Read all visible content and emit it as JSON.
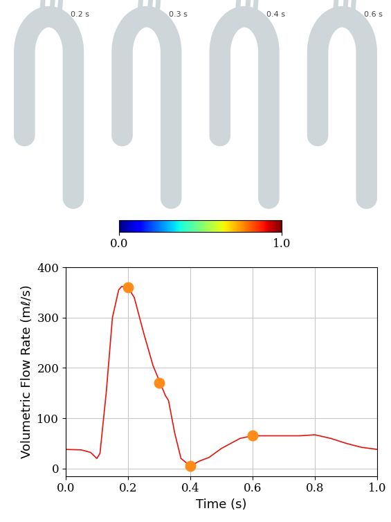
{
  "chart_data": [
    {
      "type": "colorbar",
      "annotations": [
        "0.2 s",
        "0.3 s",
        "0.4 s",
        "0.6 s"
      ],
      "colorbar_range": [
        0.0,
        1.0
      ],
      "colorbar_ticks": [
        {
          "value": 0.0,
          "label": "0.0"
        },
        {
          "value": 1.0,
          "label": "1.0"
        }
      ]
    },
    {
      "type": "line",
      "x_label": "Time (s)",
      "y_label": "Volumetric Flow Rate (mℓ/s)",
      "xlim": [
        0.0,
        1.0
      ],
      "ylim": [
        -15,
        400
      ],
      "xticks": [
        0.0,
        0.2,
        0.4,
        0.6,
        0.8,
        1.0
      ],
      "yticks": [
        0,
        100,
        200,
        300,
        400
      ],
      "grid": true,
      "series": [
        {
          "type": "line",
          "color": "#e8120c",
          "line_style": "solid",
          "x": [
            0.0,
            0.05,
            0.08,
            0.1,
            0.11,
            0.13,
            0.15,
            0.17,
            0.18,
            0.2,
            0.22,
            0.25,
            0.28,
            0.3,
            0.32,
            0.33,
            0.35,
            0.37,
            0.4,
            0.43,
            0.46,
            0.5,
            0.53,
            0.56,
            0.6,
            0.65,
            0.7,
            0.75,
            0.8,
            0.85,
            0.9,
            0.95,
            1.0
          ],
          "values": [
            38,
            37,
            32,
            20,
            30,
            150,
            300,
            355,
            362,
            360,
            340,
            270,
            205,
            175,
            145,
            135,
            70,
            20,
            5,
            15,
            22,
            40,
            50,
            60,
            65,
            65,
            65,
            65,
            67,
            60,
            50,
            42,
            38
          ]
        },
        {
          "type": "scatter",
          "color": "#ff8c1a",
          "marker": "o",
          "x": [
            0.2,
            0.3,
            0.4,
            0.6
          ],
          "values": [
            360,
            170,
            5,
            66
          ]
        }
      ]
    }
  ]
}
